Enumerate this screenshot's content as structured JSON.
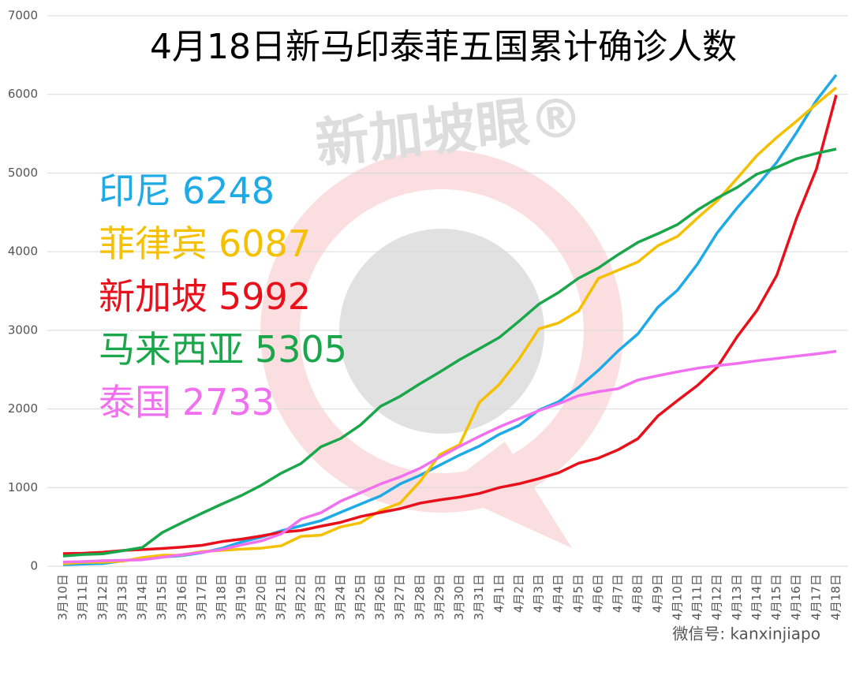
{
  "chart_data": {
    "type": "line",
    "title": "4月18日新马印泰菲五国累计确诊人数",
    "watermark": "新加坡眼®",
    "footer": "微信号: kanxinjiapo",
    "categories": [
      "3月10日",
      "3月11日",
      "3月12日",
      "3月13日",
      "3月14日",
      "3月15日",
      "3月16日",
      "3月17日",
      "3月18日",
      "3月19日",
      "3月20日",
      "3月21日",
      "3月22日",
      "3月23日",
      "3月24日",
      "3月25日",
      "3月26日",
      "3月27日",
      "3月28日",
      "3月29日",
      "3月30日",
      "3月31日",
      "4月1日",
      "4月2日",
      "4月3日",
      "4月4日",
      "4月5日",
      "4月6日",
      "4月7日",
      "4月8日",
      "4月9日",
      "4月10日",
      "4月11日",
      "4月12日",
      "4月13日",
      "4月14日",
      "4月15日",
      "4月16日",
      "4月17日",
      "4月18日"
    ],
    "series": [
      {
        "name": "印尼",
        "color": "#1eaae6",
        "values": [
          19,
          27,
          34,
          69,
          96,
          117,
          134,
          172,
          227,
          309,
          369,
          450,
          514,
          579,
          686,
          790,
          893,
          1046,
          1155,
          1285,
          1414,
          1528,
          1677,
          1790,
          1986,
          2092,
          2273,
          2491,
          2738,
          2956,
          3293,
          3512,
          3842,
          4241,
          4557,
          4839,
          5136,
          5516,
          5923,
          6248
        ]
      },
      {
        "name": "菲律宾",
        "color": "#f5c000",
        "values": [
          33,
          49,
          52,
          64,
          111,
          140,
          142,
          187,
          202,
          217,
          230,
          260,
          380,
          395,
          500,
          552,
          707,
          803,
          1075,
          1418,
          1546,
          2084,
          2311,
          2633,
          3018,
          3094,
          3246,
          3660,
          3764,
          3870,
          4076,
          4195,
          4428,
          4648,
          4932,
          5223,
          5453,
          5660,
          5878,
          6087
        ]
      },
      {
        "name": "新加坡",
        "color": "#e8101a",
        "values": [
          160,
          166,
          178,
          200,
          212,
          226,
          243,
          266,
          313,
          345,
          385,
          432,
          455,
          509,
          558,
          631,
          683,
          732,
          802,
          844,
          879,
          926,
          1000,
          1049,
          1114,
          1189,
          1309,
          1375,
          1481,
          1623,
          1910,
          2108,
          2299,
          2532,
          2918,
          3252,
          3699,
          4427,
          5050,
          5992
        ]
      },
      {
        "name": "马来西亚",
        "color": "#1aa64a",
        "values": [
          129,
          149,
          158,
          197,
          238,
          428,
          553,
          673,
          790,
          900,
          1030,
          1183,
          1306,
          1518,
          1624,
          1796,
          2031,
          2161,
          2320,
          2470,
          2626,
          2766,
          2908,
          3116,
          3333,
          3483,
          3662,
          3793,
          3963,
          4119,
          4228,
          4346,
          4530,
          4683,
          4817,
          4987,
          5072,
          5182,
          5251,
          5305
        ]
      },
      {
        "name": "泰国",
        "color": "#f070f0",
        "values": [
          53,
          59,
          70,
          75,
          82,
          114,
          147,
          177,
          212,
          272,
          322,
          411,
          599,
          680,
          827,
          934,
          1045,
          1136,
          1245,
          1388,
          1524,
          1651,
          1771,
          1875,
          1978,
          2067,
          2169,
          2220,
          2258,
          2369,
          2423,
          2473,
          2518,
          2551,
          2579,
          2613,
          2643,
          2672,
          2700,
          2733
        ]
      }
    ],
    "ylim": [
      0,
      7000
    ],
    "yticks": [
      0,
      1000,
      2000,
      3000,
      4000,
      5000,
      6000,
      7000
    ],
    "grid": true
  }
}
